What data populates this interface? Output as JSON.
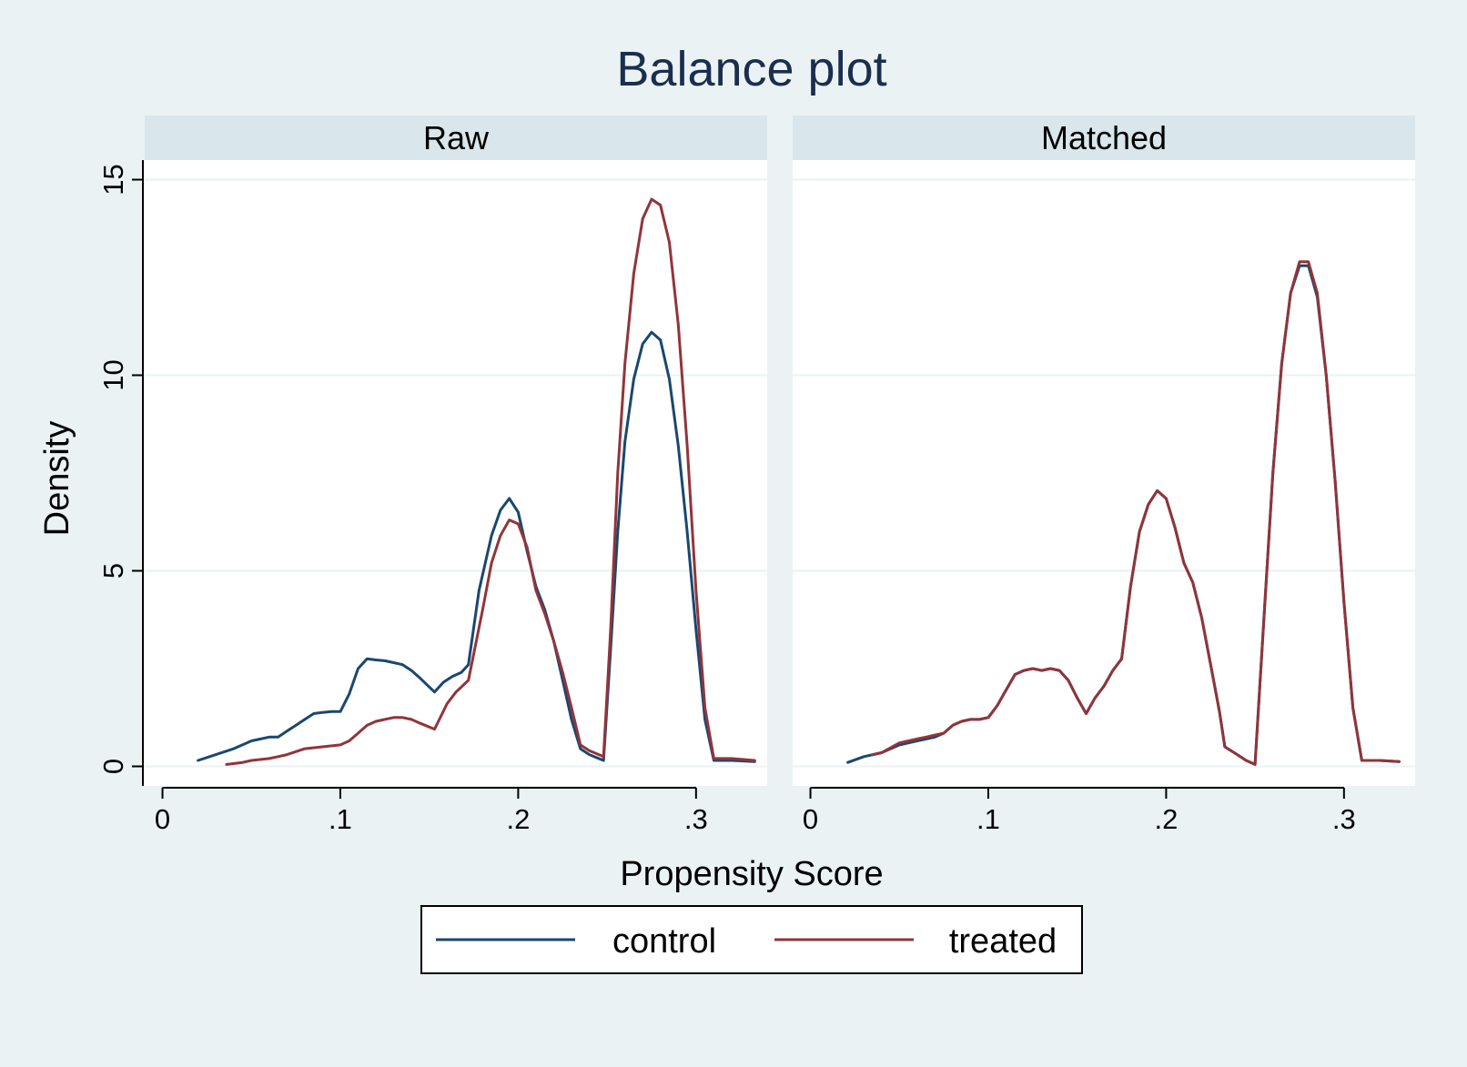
{
  "chart_data": {
    "type": "line",
    "title": "Balance plot",
    "xlabel": "Propensity Score",
    "ylabel": "Density",
    "xlim": [
      -0.01,
      0.34
    ],
    "ylim": [
      -0.5,
      15.5
    ],
    "x_ticks": [
      0,
      0.1,
      0.2,
      0.3
    ],
    "x_tick_labels": [
      "0",
      ".1",
      ".2",
      ".3"
    ],
    "y_ticks": [
      0,
      5,
      10,
      15
    ],
    "y_tick_labels": [
      "0",
      "5",
      "10",
      "15"
    ],
    "grid": true,
    "legend": {
      "position": "bottom",
      "entries": [
        {
          "name": "control",
          "color": "#1a476f"
        },
        {
          "name": "treated",
          "color": "#90353b"
        }
      ]
    },
    "panels": [
      {
        "label": "Raw",
        "series": [
          {
            "name": "control",
            "color": "#1a476f",
            "x": [
              0.02,
              0.03,
              0.04,
              0.05,
              0.06,
              0.065,
              0.07,
              0.075,
              0.08,
              0.085,
              0.09,
              0.095,
              0.1,
              0.105,
              0.11,
              0.115,
              0.12,
              0.125,
              0.13,
              0.135,
              0.14,
              0.145,
              0.153,
              0.158,
              0.163,
              0.168,
              0.172,
              0.178,
              0.185,
              0.19,
              0.195,
              0.2,
              0.205,
              0.21,
              0.215,
              0.22,
              0.225,
              0.23,
              0.235,
              0.24,
              0.248,
              0.252,
              0.256,
              0.26,
              0.265,
              0.27,
              0.275,
              0.28,
              0.285,
              0.29,
              0.295,
              0.3,
              0.305,
              0.31,
              0.32,
              0.333
            ],
            "y": [
              0.15,
              0.3,
              0.45,
              0.65,
              0.75,
              0.75,
              0.9,
              1.05,
              1.2,
              1.35,
              1.38,
              1.4,
              1.4,
              1.85,
              2.5,
              2.75,
              2.72,
              2.7,
              2.65,
              2.6,
              2.45,
              2.25,
              1.9,
              2.15,
              2.3,
              2.4,
              2.6,
              4.5,
              5.9,
              6.55,
              6.85,
              6.5,
              5.5,
              4.6,
              4.0,
              3.2,
              2.2,
              1.2,
              0.45,
              0.3,
              0.15,
              3.0,
              6.0,
              8.3,
              9.9,
              10.8,
              11.1,
              10.9,
              9.9,
              8.2,
              6.0,
              3.5,
              1.2,
              0.15,
              0.15,
              0.12
            ]
          },
          {
            "name": "treated",
            "color": "#90353b",
            "x": [
              0.036,
              0.045,
              0.05,
              0.06,
              0.065,
              0.07,
              0.08,
              0.09,
              0.1,
              0.105,
              0.11,
              0.115,
              0.12,
              0.125,
              0.13,
              0.135,
              0.14,
              0.145,
              0.153,
              0.16,
              0.165,
              0.172,
              0.18,
              0.185,
              0.19,
              0.195,
              0.2,
              0.205,
              0.21,
              0.215,
              0.22,
              0.225,
              0.23,
              0.235,
              0.24,
              0.248,
              0.252,
              0.256,
              0.26,
              0.265,
              0.27,
              0.275,
              0.28,
              0.285,
              0.29,
              0.295,
              0.3,
              0.305,
              0.31,
              0.32,
              0.333
            ],
            "y": [
              0.05,
              0.1,
              0.15,
              0.2,
              0.25,
              0.3,
              0.45,
              0.5,
              0.55,
              0.65,
              0.85,
              1.05,
              1.15,
              1.2,
              1.25,
              1.25,
              1.2,
              1.1,
              0.95,
              1.6,
              1.9,
              2.2,
              4.0,
              5.2,
              5.9,
              6.3,
              6.2,
              5.6,
              4.5,
              3.9,
              3.2,
              2.4,
              1.5,
              0.55,
              0.4,
              0.25,
              3.5,
              7.5,
              10.3,
              12.6,
              14.0,
              14.5,
              14.35,
              13.4,
              11.3,
              8.2,
              4.5,
              1.5,
              0.2,
              0.2,
              0.15
            ]
          }
        ]
      },
      {
        "label": "Matched",
        "series": [
          {
            "name": "control",
            "color": "#1a476f",
            "x": [
              0.021,
              0.03,
              0.04,
              0.05,
              0.06,
              0.065,
              0.07,
              0.075,
              0.08,
              0.085,
              0.09,
              0.095,
              0.1,
              0.105,
              0.11,
              0.115,
              0.12,
              0.125,
              0.13,
              0.135,
              0.14,
              0.145,
              0.15,
              0.155,
              0.16,
              0.165,
              0.17,
              0.175,
              0.18,
              0.185,
              0.19,
              0.195,
              0.2,
              0.205,
              0.21,
              0.215,
              0.22,
              0.225,
              0.23,
              0.233,
              0.24,
              0.245,
              0.25,
              0.255,
              0.26,
              0.265,
              0.27,
              0.275,
              0.28,
              0.285,
              0.29,
              0.295,
              0.3,
              0.305,
              0.31,
              0.32,
              0.331
            ],
            "y": [
              0.1,
              0.25,
              0.35,
              0.55,
              0.65,
              0.7,
              0.75,
              0.85,
              1.05,
              1.15,
              1.2,
              1.2,
              1.25,
              1.55,
              1.95,
              2.35,
              2.45,
              2.5,
              2.45,
              2.5,
              2.45,
              2.2,
              1.75,
              1.35,
              1.75,
              2.05,
              2.45,
              2.75,
              4.6,
              6.0,
              6.7,
              7.05,
              6.85,
              6.1,
              5.2,
              4.7,
              3.8,
              2.6,
              1.4,
              0.5,
              0.3,
              0.15,
              0.05,
              3.8,
              7.5,
              10.3,
              12.1,
              12.8,
              12.8,
              12.0,
              10.0,
              7.3,
              4.2,
              1.5,
              0.15,
              0.15,
              0.12
            ]
          },
          {
            "name": "treated",
            "color": "#90353b",
            "x": [
              0.035,
              0.04,
              0.05,
              0.06,
              0.065,
              0.07,
              0.075,
              0.08,
              0.085,
              0.09,
              0.095,
              0.1,
              0.105,
              0.11,
              0.115,
              0.12,
              0.125,
              0.13,
              0.135,
              0.14,
              0.145,
              0.15,
              0.155,
              0.16,
              0.165,
              0.17,
              0.175,
              0.18,
              0.185,
              0.19,
              0.195,
              0.2,
              0.205,
              0.21,
              0.215,
              0.22,
              0.225,
              0.23,
              0.233,
              0.24,
              0.245,
              0.25,
              0.255,
              0.26,
              0.265,
              0.27,
              0.275,
              0.28,
              0.285,
              0.29,
              0.295,
              0.3,
              0.305,
              0.31,
              0.32,
              0.331
            ],
            "y": [
              0.3,
              0.35,
              0.6,
              0.7,
              0.75,
              0.8,
              0.85,
              1.05,
              1.15,
              1.2,
              1.2,
              1.25,
              1.55,
              1.95,
              2.35,
              2.45,
              2.5,
              2.45,
              2.5,
              2.45,
              2.2,
              1.75,
              1.35,
              1.75,
              2.05,
              2.45,
              2.75,
              4.6,
              6.0,
              6.7,
              7.05,
              6.85,
              6.1,
              5.2,
              4.7,
              3.8,
              2.6,
              1.4,
              0.5,
              0.3,
              0.15,
              0.05,
              3.8,
              7.5,
              10.3,
              12.1,
              12.9,
              12.9,
              12.1,
              10.0,
              7.3,
              4.2,
              1.5,
              0.15,
              0.15,
              0.12
            ]
          }
        ]
      }
    ]
  }
}
